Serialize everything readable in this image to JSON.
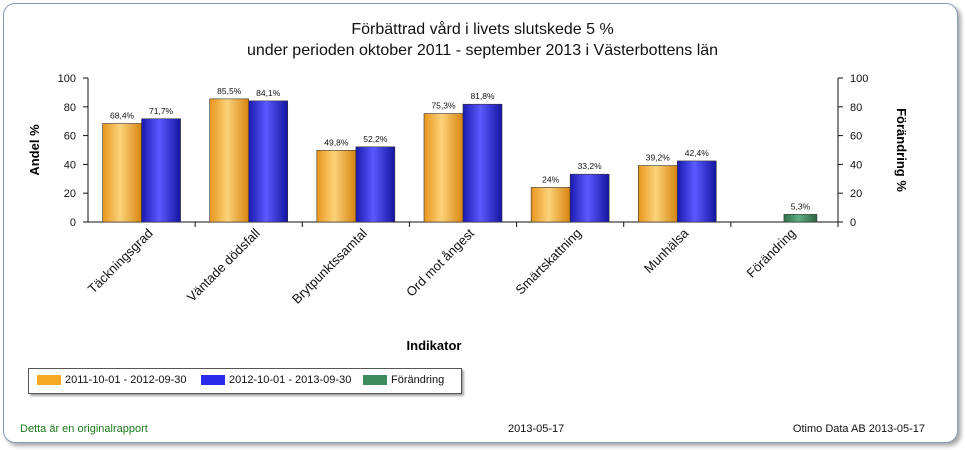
{
  "chart_data": {
    "type": "bar",
    "title_line1": "Förbättrad vård i livets slutskede 5 %",
    "title_line2": "under perioden oktober 2011 - september 2013 i Västerbottens län",
    "xlabel": "Indikator",
    "ylabel": "Andel %",
    "y2label": "Förändring %",
    "ylim": [
      0,
      100
    ],
    "y2lim": [
      0,
      100
    ],
    "yticks": [
      "0",
      "20",
      "40",
      "60",
      "80",
      "100"
    ],
    "categories": [
      "Täckningsgrad",
      "Väntade dödsfall",
      "Brytpunktssamtal",
      "Ord mot ångest",
      "Smärtskattning",
      "Munhälsa",
      "Förändring"
    ],
    "series": [
      {
        "name": "2011-10-01 - 2012-09-30",
        "color": "#f5a623",
        "values": [
          68.4,
          85.5,
          49.8,
          75.3,
          24,
          39.2,
          null
        ],
        "labels": [
          "68,4%",
          "85,5%",
          "49,8%",
          "75,3%",
          "24%",
          "39,2%",
          ""
        ]
      },
      {
        "name": "2012-10-01 - 2013-09-30",
        "color": "#2a2ae8",
        "values": [
          71.7,
          84.1,
          52.2,
          81.8,
          33.2,
          42.4,
          null
        ],
        "labels": [
          "71,7%",
          "84,1%",
          "52,2%",
          "81,8%",
          "33,2%",
          "42,4%",
          ""
        ]
      },
      {
        "name": "Förändring",
        "color": "#3d8a5c",
        "values": [
          null,
          null,
          null,
          null,
          null,
          null,
          5.3
        ],
        "labels": [
          "",
          "",
          "",
          "",
          "",
          "",
          "5,3%"
        ]
      }
    ],
    "legend": "bottom-left",
    "grid": false
  },
  "footer": {
    "left": "Detta är en originalrapport",
    "middle": "2013-05-17",
    "right": "Otimo Data AB 2013-05-17"
  }
}
